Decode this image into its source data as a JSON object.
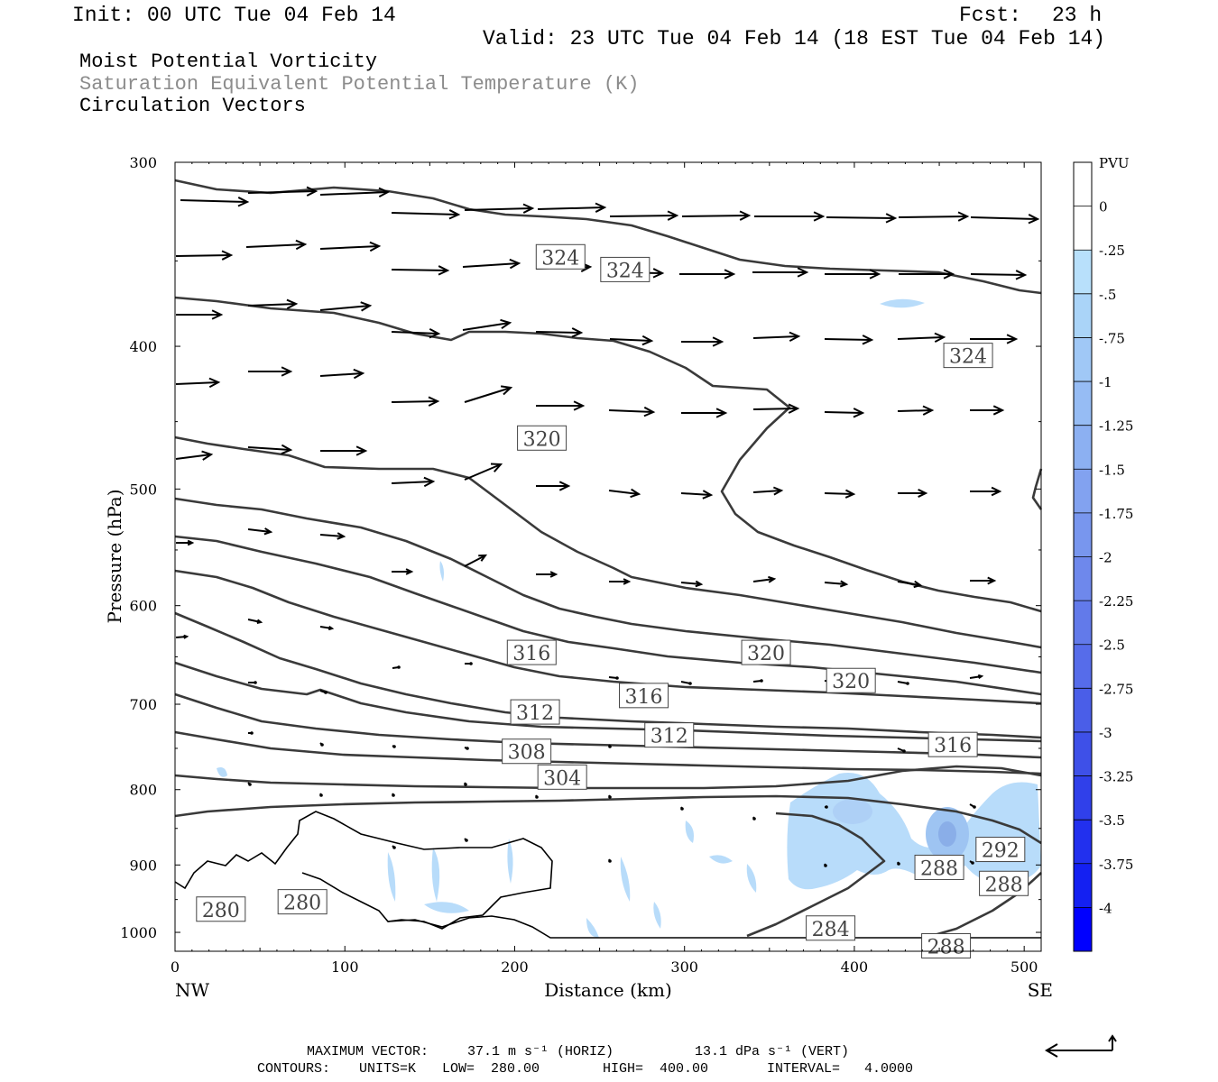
{
  "header": {
    "init": "Init: 00 UTC Tue 04 Feb 14",
    "fcst_label": "Fcst:",
    "fcst_value": "23 h",
    "valid": "Valid: 23 UTC Tue 04 Feb 14 (18 EST Tue 04 Feb 14)"
  },
  "titles": {
    "line1": "Moist Potential Vorticity",
    "line2": "Saturation Equivalent Potential Temperature (K)",
    "line3": "Circulation Vectors"
  },
  "footer": {
    "max_vector_label": "MAXIMUM VECTOR:",
    "max_horiz": "37.1 m s⁻¹ (HORIZ)",
    "max_vert": "13.1 dPa s⁻¹ (VERT)",
    "contours_label": "CONTOURS:",
    "units": "UNITS=K",
    "low": "LOW=  280.00",
    "high": "HIGH=  400.00",
    "interval": "INTERVAL=   4.0000"
  },
  "colors": {
    "contour": "#3a3a3a",
    "pv_light": "#b8dcfa",
    "pv_dark": "#0000ff"
  },
  "chart_data": {
    "type": "heatmap",
    "xlabel": "Distance (km)",
    "ylabel": "Pressure (hPa)",
    "x_end_labels": [
      "NW",
      "SE"
    ],
    "xlim": [
      0,
      510
    ],
    "ylim": [
      300,
      1030
    ],
    "y_log": true,
    "xticks": [
      0,
      100,
      200,
      300,
      400,
      500
    ],
    "yticks": [
      300,
      400,
      500,
      600,
      700,
      800,
      900,
      1000
    ],
    "colorbar": {
      "title": "PVU",
      "levels": [
        "0",
        "-.25",
        "-.5",
        "-.75",
        "-1",
        "-1.25",
        "-1.5",
        "-1.75",
        "-2",
        "-2.25",
        "-2.5",
        "-2.75",
        "-3",
        "-3.25",
        "-3.5",
        "-3.75",
        "-4"
      ],
      "colors": [
        "#ffffff",
        "#ffffff",
        "#b8e0fb",
        "#aad4f8",
        "#a0c8f6",
        "#96bcf4",
        "#8cb0f2",
        "#82a2f0",
        "#7896ee",
        "#6e88ec",
        "#627aea",
        "#566cea",
        "#4a5ee8",
        "#3e50e8",
        "#3040ea",
        "#2230ee",
        "#1420f2",
        "#0000ff"
      ]
    },
    "contour_labels": [
      {
        "x": 227,
        "p": 348,
        "text": "324"
      },
      {
        "x": 265,
        "p": 355,
        "text": "324"
      },
      {
        "x": 467,
        "p": 406,
        "text": "324"
      },
      {
        "x": 216,
        "p": 462,
        "text": "320"
      },
      {
        "x": 348,
        "p": 646,
        "text": "320"
      },
      {
        "x": 398,
        "p": 675,
        "text": "320"
      },
      {
        "x": 210,
        "p": 646,
        "text": "316"
      },
      {
        "x": 276,
        "p": 691,
        "text": "316"
      },
      {
        "x": 458,
        "p": 746,
        "text": "316"
      },
      {
        "x": 212,
        "p": 709,
        "text": "312"
      },
      {
        "x": 291,
        "p": 735,
        "text": "312"
      },
      {
        "x": 207,
        "p": 754,
        "text": "308"
      },
      {
        "x": 228,
        "p": 785,
        "text": "304"
      },
      {
        "x": 486,
        "p": 879,
        "text": "292"
      },
      {
        "x": 450,
        "p": 904,
        "text": "288"
      },
      {
        "x": 488,
        "p": 927,
        "text": "288"
      },
      {
        "x": 454,
        "p": 1022,
        "text": "288"
      },
      {
        "x": 386,
        "p": 994,
        "text": "284"
      },
      {
        "x": 27,
        "p": 965,
        "text": "280"
      },
      {
        "x": 75,
        "p": 954,
        "text": "280"
      }
    ]
  }
}
